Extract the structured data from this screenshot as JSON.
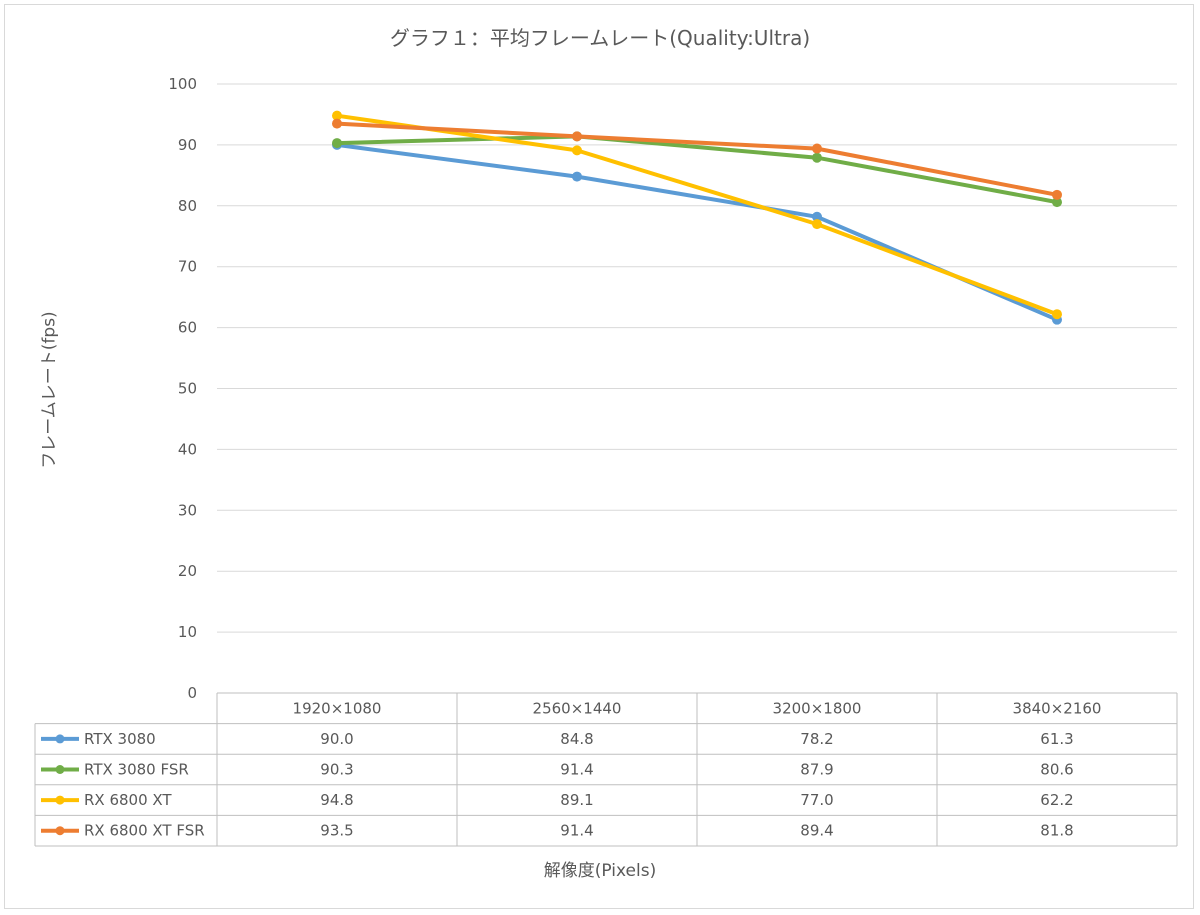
{
  "chart_data": {
    "type": "line",
    "title": "グラフ１：平均フレームレート(Quality:Ultra)",
    "xlabel": "解像度(Pixels)",
    "ylabel": "フレームレート(fps)",
    "ylim": [
      0,
      100
    ],
    "yticks": [
      "0",
      "10",
      "20",
      "30",
      "40",
      "50",
      "60",
      "70",
      "80",
      "90",
      "100"
    ],
    "grid": true,
    "legend": "data-table",
    "categories": [
      "1920×1080",
      "2560×1440",
      "3200×1800",
      "3840×2160"
    ],
    "series": [
      {
        "name": "RTX 3080",
        "color": "#5b9bd5",
        "values": [
          90.0,
          84.8,
          78.2,
          61.3
        ],
        "labels": [
          "90.0",
          "84.8",
          "78.2",
          "61.3"
        ]
      },
      {
        "name": "RTX 3080 FSR",
        "color": "#70ad47",
        "values": [
          90.3,
          91.4,
          87.9,
          80.6
        ],
        "labels": [
          "90.3",
          "91.4",
          "87.9",
          "80.6"
        ]
      },
      {
        "name": "RX 6800 XT",
        "color": "#ffc000",
        "values": [
          94.8,
          89.1,
          77.0,
          62.2
        ],
        "labels": [
          "94.8",
          "89.1",
          "77.0",
          "62.2"
        ]
      },
      {
        "name": "RX 6800 XT FSR",
        "color": "#ed7d31",
        "values": [
          93.5,
          91.4,
          89.4,
          81.8
        ],
        "labels": [
          "93.5",
          "91.4",
          "89.4",
          "81.8"
        ]
      }
    ]
  }
}
